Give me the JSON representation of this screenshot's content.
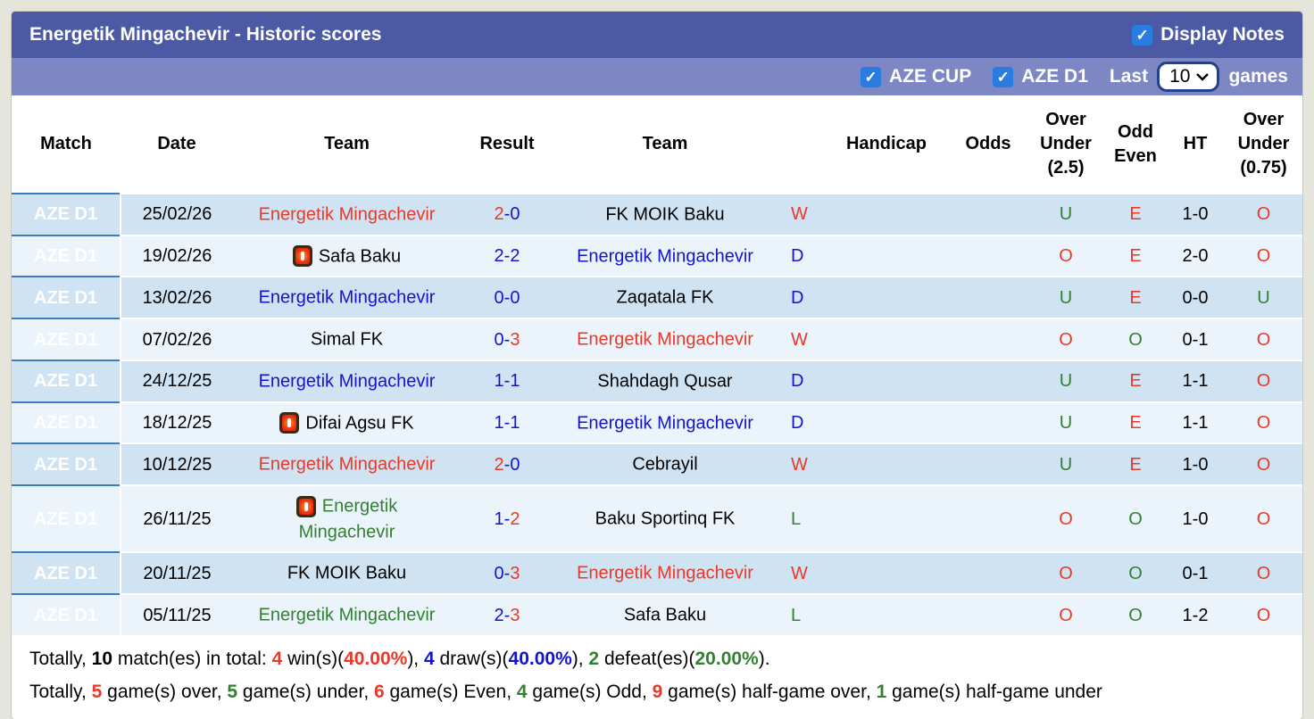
{
  "colors": {
    "red": "#e8392a",
    "blue": "#1414cc",
    "green": "#338033",
    "black": "#000000",
    "league_badge_bg": "#3b7cc1",
    "titlebar_bg": "#4c5aa6",
    "filterbar_bg": "#7d87c3",
    "checkbox_blue": "#2a7ce0"
  },
  "header": {
    "title": "Energetik Mingachevir - Historic scores",
    "display_notes_label": "Display Notes",
    "filters": {
      "aze_cup_label": "AZE CUP",
      "aze_cup_checked": true,
      "aze_d1_label": "AZE D1",
      "aze_d1_checked": true,
      "last_label": "Last",
      "last_games_value": "10",
      "games_label": "games"
    }
  },
  "table": {
    "columns": [
      "Match",
      "Date",
      "Team",
      "Result",
      "Team",
      "",
      "Handicap",
      "Odds",
      "Over\nUnder\n(2.5)",
      "Odd\nEven",
      "HT",
      "Over\nUnder\n(0.75)"
    ],
    "rows": [
      {
        "match": "AZE D1",
        "date": "25/02/26",
        "team1": {
          "name": "Energetik Mingachevir",
          "color": "red",
          "card": false
        },
        "result": [
          {
            "t": "2",
            "c": "red"
          },
          {
            "t": "-0",
            "c": "blue"
          }
        ],
        "team2": {
          "name": "FK MOIK Baku",
          "color": "black",
          "card": false
        },
        "wdl": {
          "t": "W",
          "c": "red"
        },
        "handicap": "",
        "odds": "",
        "ou25": {
          "t": "U",
          "c": "green"
        },
        "oddeven": {
          "t": "E",
          "c": "red"
        },
        "ht": "1-0",
        "ou075": {
          "t": "O",
          "c": "red"
        }
      },
      {
        "match": "AZE D1",
        "date": "19/02/26",
        "team1": {
          "name": "Safa Baku",
          "color": "black",
          "card": true
        },
        "result": [
          {
            "t": "2-2",
            "c": "blue"
          }
        ],
        "team2": {
          "name": "Energetik Mingachevir",
          "color": "blue",
          "card": false
        },
        "wdl": {
          "t": "D",
          "c": "blue"
        },
        "handicap": "",
        "odds": "",
        "ou25": {
          "t": "O",
          "c": "red"
        },
        "oddeven": {
          "t": "E",
          "c": "red"
        },
        "ht": "2-0",
        "ou075": {
          "t": "O",
          "c": "red"
        }
      },
      {
        "match": "AZE D1",
        "date": "13/02/26",
        "team1": {
          "name": "Energetik Mingachevir",
          "color": "blue",
          "card": false
        },
        "result": [
          {
            "t": "0-0",
            "c": "blue"
          }
        ],
        "team2": {
          "name": "Zaqatala FK",
          "color": "black",
          "card": false
        },
        "wdl": {
          "t": "D",
          "c": "blue"
        },
        "handicap": "",
        "odds": "",
        "ou25": {
          "t": "U",
          "c": "green"
        },
        "oddeven": {
          "t": "E",
          "c": "red"
        },
        "ht": "0-0",
        "ou075": {
          "t": "U",
          "c": "green"
        }
      },
      {
        "match": "AZE D1",
        "date": "07/02/26",
        "team1": {
          "name": "Simal FK",
          "color": "black",
          "card": false
        },
        "result": [
          {
            "t": "0-",
            "c": "blue"
          },
          {
            "t": "3",
            "c": "red"
          }
        ],
        "team2": {
          "name": "Energetik Mingachevir",
          "color": "red",
          "card": false
        },
        "wdl": {
          "t": "W",
          "c": "red"
        },
        "handicap": "",
        "odds": "",
        "ou25": {
          "t": "O",
          "c": "red"
        },
        "oddeven": {
          "t": "O",
          "c": "green"
        },
        "ht": "0-1",
        "ou075": {
          "t": "O",
          "c": "red"
        }
      },
      {
        "match": "AZE D1",
        "date": "24/12/25",
        "team1": {
          "name": "Energetik Mingachevir",
          "color": "blue",
          "card": false
        },
        "result": [
          {
            "t": "1-1",
            "c": "blue"
          }
        ],
        "team2": {
          "name": "Shahdagh Qusar",
          "color": "black",
          "card": false
        },
        "wdl": {
          "t": "D",
          "c": "blue"
        },
        "handicap": "",
        "odds": "",
        "ou25": {
          "t": "U",
          "c": "green"
        },
        "oddeven": {
          "t": "E",
          "c": "red"
        },
        "ht": "1-1",
        "ou075": {
          "t": "O",
          "c": "red"
        }
      },
      {
        "match": "AZE D1",
        "date": "18/12/25",
        "team1": {
          "name": "Difai Agsu FK",
          "color": "black",
          "card": true
        },
        "result": [
          {
            "t": "1-1",
            "c": "blue"
          }
        ],
        "team2": {
          "name": "Energetik Mingachevir",
          "color": "blue",
          "card": false
        },
        "wdl": {
          "t": "D",
          "c": "blue"
        },
        "handicap": "",
        "odds": "",
        "ou25": {
          "t": "U",
          "c": "green"
        },
        "oddeven": {
          "t": "E",
          "c": "red"
        },
        "ht": "1-1",
        "ou075": {
          "t": "O",
          "c": "red"
        }
      },
      {
        "match": "AZE D1",
        "date": "10/12/25",
        "team1": {
          "name": "Energetik Mingachevir",
          "color": "red",
          "card": false
        },
        "result": [
          {
            "t": "2",
            "c": "red"
          },
          {
            "t": "-0",
            "c": "blue"
          }
        ],
        "team2": {
          "name": "Cebrayil",
          "color": "black",
          "card": false
        },
        "wdl": {
          "t": "W",
          "c": "red"
        },
        "handicap": "",
        "odds": "",
        "ou25": {
          "t": "U",
          "c": "green"
        },
        "oddeven": {
          "t": "E",
          "c": "red"
        },
        "ht": "1-0",
        "ou075": {
          "t": "O",
          "c": "red"
        }
      },
      {
        "match": "AZE D1",
        "date": "26/11/25",
        "team1": {
          "name": "Energetik\nMingachevir",
          "color": "green",
          "card": true
        },
        "result": [
          {
            "t": "1-",
            "c": "blue"
          },
          {
            "t": "2",
            "c": "red"
          }
        ],
        "team2": {
          "name": "Baku Sportinq FK",
          "color": "black",
          "card": false
        },
        "wdl": {
          "t": "L",
          "c": "green"
        },
        "handicap": "",
        "odds": "",
        "ou25": {
          "t": "O",
          "c": "red"
        },
        "oddeven": {
          "t": "O",
          "c": "green"
        },
        "ht": "1-0",
        "ou075": {
          "t": "O",
          "c": "red"
        }
      },
      {
        "match": "AZE D1",
        "date": "20/11/25",
        "team1": {
          "name": "FK MOIK Baku",
          "color": "black",
          "card": false
        },
        "result": [
          {
            "t": "0-",
            "c": "blue"
          },
          {
            "t": "3",
            "c": "red"
          }
        ],
        "team2": {
          "name": "Energetik Mingachevir",
          "color": "red",
          "card": false
        },
        "wdl": {
          "t": "W",
          "c": "red"
        },
        "handicap": "",
        "odds": "",
        "ou25": {
          "t": "O",
          "c": "red"
        },
        "oddeven": {
          "t": "O",
          "c": "green"
        },
        "ht": "0-1",
        "ou075": {
          "t": "O",
          "c": "red"
        }
      },
      {
        "match": "AZE D1",
        "date": "05/11/25",
        "team1": {
          "name": "Energetik Mingachevir",
          "color": "green",
          "card": false
        },
        "result": [
          {
            "t": "2-",
            "c": "blue"
          },
          {
            "t": "3",
            "c": "red"
          }
        ],
        "team2": {
          "name": "Safa Baku",
          "color": "black",
          "card": false
        },
        "wdl": {
          "t": "L",
          "c": "green"
        },
        "handicap": "",
        "odds": "",
        "ou25": {
          "t": "O",
          "c": "red"
        },
        "oddeven": {
          "t": "O",
          "c": "green"
        },
        "ht": "1-2",
        "ou075": {
          "t": "O",
          "c": "red"
        }
      }
    ]
  },
  "footer": {
    "line1": [
      {
        "t": "Totally, ",
        "c": "black",
        "b": false
      },
      {
        "t": "10",
        "c": "black",
        "b": true
      },
      {
        "t": " match(es) in total: ",
        "c": "black",
        "b": false
      },
      {
        "t": "4",
        "c": "red",
        "b": true
      },
      {
        "t": " win(s)(",
        "c": "black",
        "b": false
      },
      {
        "t": "40.00%",
        "c": "red",
        "b": true
      },
      {
        "t": "), ",
        "c": "black",
        "b": false
      },
      {
        "t": "4",
        "c": "blue",
        "b": true
      },
      {
        "t": " draw(s)(",
        "c": "black",
        "b": false
      },
      {
        "t": "40.00%",
        "c": "blue",
        "b": true
      },
      {
        "t": "), ",
        "c": "black",
        "b": false
      },
      {
        "t": "2",
        "c": "green",
        "b": true
      },
      {
        "t": " defeat(es)(",
        "c": "black",
        "b": false
      },
      {
        "t": "20.00%",
        "c": "green",
        "b": true
      },
      {
        "t": ").",
        "c": "black",
        "b": false
      }
    ],
    "line2": [
      {
        "t": "Totally, ",
        "c": "black",
        "b": false
      },
      {
        "t": "5",
        "c": "red",
        "b": true
      },
      {
        "t": " game(s) over, ",
        "c": "black",
        "b": false
      },
      {
        "t": "5",
        "c": "green",
        "b": true
      },
      {
        "t": " game(s) under, ",
        "c": "black",
        "b": false
      },
      {
        "t": "6",
        "c": "red",
        "b": true
      },
      {
        "t": " game(s) Even, ",
        "c": "black",
        "b": false
      },
      {
        "t": "4",
        "c": "green",
        "b": true
      },
      {
        "t": " game(s) Odd, ",
        "c": "black",
        "b": false
      },
      {
        "t": "9",
        "c": "red",
        "b": true
      },
      {
        "t": " game(s) half-game over, ",
        "c": "black",
        "b": false
      },
      {
        "t": "1",
        "c": "green",
        "b": true
      },
      {
        "t": " game(s) half-game under",
        "c": "black",
        "b": false
      }
    ]
  }
}
